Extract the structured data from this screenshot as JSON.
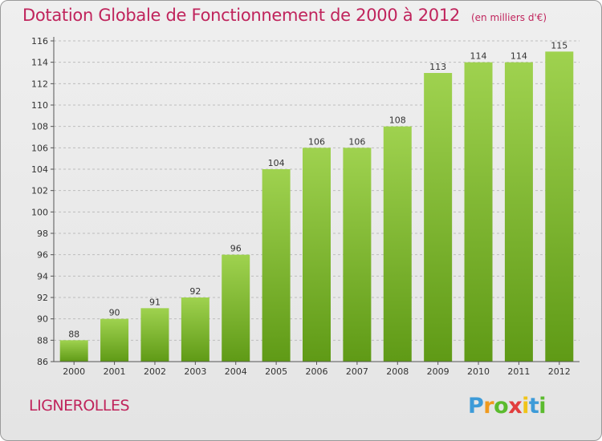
{
  "title": "Dotation Globale de Fonctionnement de 2000 à 2012",
  "subtitle": "(en milliers d'€)",
  "commune": "LIGNEROLLES",
  "logo": {
    "p": "P",
    "r": "r",
    "o": "o",
    "x": "x",
    "i1": "i",
    "t": "t",
    "i2": "i"
  },
  "colors": {
    "title": "#c0245c",
    "bar_light": "#9fd24f",
    "bar_dark": "#5f9a16",
    "grid": "#bdbdbd",
    "axis": "#555555"
  },
  "chart_data": {
    "type": "bar",
    "categories": [
      "2000",
      "2001",
      "2002",
      "2003",
      "2004",
      "2005",
      "2006",
      "2007",
      "2008",
      "2009",
      "2010",
      "2011",
      "2012"
    ],
    "values": [
      88,
      90,
      91,
      92,
      96,
      104,
      106,
      106,
      108,
      113,
      114,
      114,
      115
    ],
    "data_labels": [
      "88",
      "90",
      "91",
      "92",
      "96",
      "104",
      "106",
      "106",
      "108",
      "113",
      "114",
      "114",
      "115"
    ],
    "y_ticks": [
      86,
      88,
      90,
      92,
      94,
      96,
      98,
      100,
      102,
      104,
      106,
      108,
      110,
      112,
      114,
      116
    ],
    "ylim": [
      86,
      116
    ],
    "grid": true,
    "legend": "none"
  }
}
